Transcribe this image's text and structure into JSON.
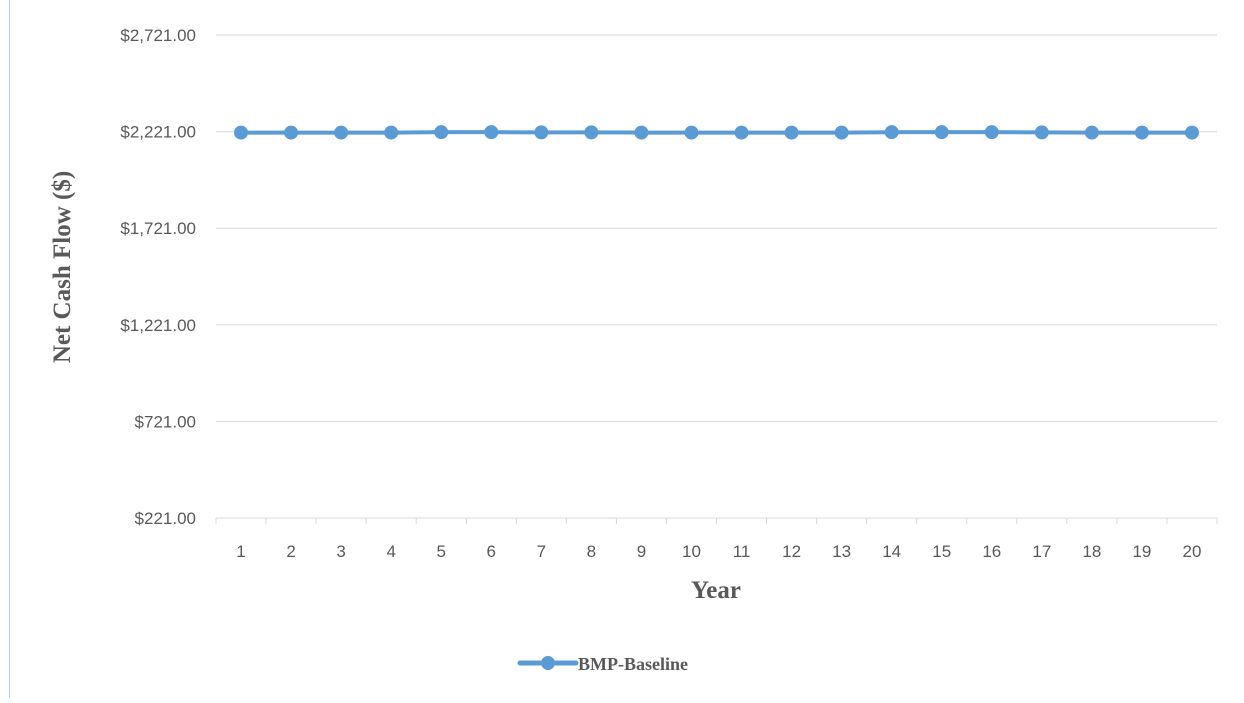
{
  "chart_data": {
    "type": "line",
    "xlabel": "Year",
    "ylabel": "Net Cash Flow ($)",
    "categories": [
      "1",
      "2",
      "3",
      "4",
      "5",
      "6",
      "7",
      "8",
      "9",
      "10",
      "11",
      "12",
      "13",
      "14",
      "15",
      "16",
      "17",
      "18",
      "19",
      "20"
    ],
    "y_ticks": [
      "$221.00",
      "$721.00",
      "$1,221.00",
      "$1,721.00",
      "$2,221.00",
      "$2,721.00"
    ],
    "ylim": [
      221,
      2721
    ],
    "grid": true,
    "legend_position": "bottom",
    "series": [
      {
        "name": "BMP-Baseline",
        "color": "#5b9bd5",
        "values": [
          2216,
          2216,
          2216,
          2216,
          2218,
          2218,
          2217,
          2217,
          2216,
          2216,
          2216,
          2216,
          2216,
          2218,
          2218,
          2218,
          2217,
          2216,
          2216,
          2216
        ]
      }
    ]
  }
}
